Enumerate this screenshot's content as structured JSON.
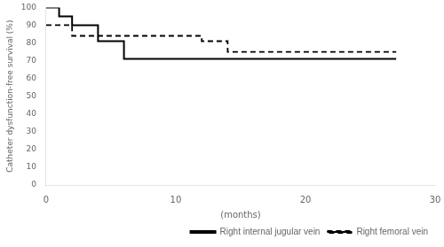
{
  "chart_data": {
    "type": "step",
    "xlabel": "(months)",
    "ylabel": "Catheter dysfunction-free survival (%)",
    "xlim": [
      0,
      30
    ],
    "ylim": [
      0,
      100
    ],
    "xticks": [
      0,
      10,
      20,
      30
    ],
    "yticks": [
      0,
      10,
      20,
      30,
      40,
      50,
      60,
      70,
      80,
      90,
      100
    ],
    "grid": false,
    "legend": "lower right",
    "series": [
      {
        "name": "Right internal jugular vein",
        "color": "#000000",
        "line_style": "solid",
        "x": [
          0,
          1,
          1,
          2,
          2,
          4,
          4,
          6,
          6,
          10,
          10,
          27
        ],
        "values": [
          100,
          100,
          95,
          95,
          90,
          90,
          81,
          81,
          71,
          71,
          71,
          71
        ]
      },
      {
        "name": "Right femoral vein",
        "color": "#000000",
        "line_style": "dashed",
        "x": [
          0,
          2,
          2,
          4,
          4,
          12,
          12,
          14,
          14,
          27
        ],
        "values": [
          90,
          90,
          84,
          84,
          84,
          84,
          81,
          81,
          75,
          75
        ]
      }
    ]
  }
}
